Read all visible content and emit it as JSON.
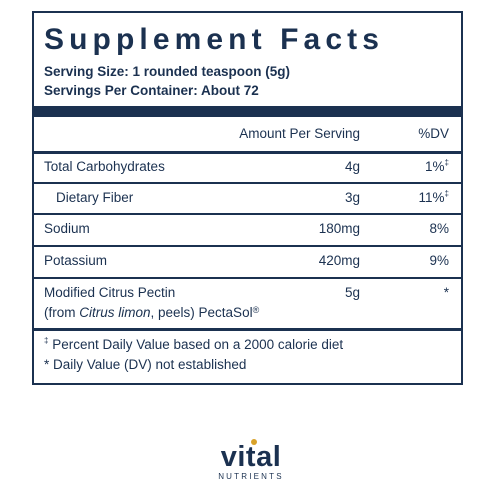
{
  "label": {
    "title": "Supplement Facts",
    "serving_size": "Serving Size: 1 rounded teaspoon (5g)",
    "servings_per_container": "Servings Per Container: About 72",
    "header_amount": "Amount Per Serving",
    "header_dv": "%DV",
    "rows": [
      {
        "name": "Total Carbohydrates",
        "amount": "4g",
        "dv": "1%",
        "dv_mark": "‡"
      },
      {
        "name": "Dietary Fiber",
        "amount": "3g",
        "dv": "11%",
        "dv_mark": "‡"
      },
      {
        "name": "Sodium",
        "amount": "180mg",
        "dv": "8%",
        "dv_mark": ""
      },
      {
        "name": "Potassium",
        "amount": "420mg",
        "dv": "9%",
        "dv_mark": ""
      },
      {
        "name": "Modified Citrus Pectin",
        "name_line2_prefix": "(from ",
        "name_line2_italic": "Citrus limon",
        "name_line2_suffix": ", peels) PectaSol",
        "name_line2_mark": "®",
        "amount": "5g",
        "dv": "*",
        "dv_mark": ""
      }
    ],
    "footnotes": [
      {
        "mark": "‡",
        "text": " Percent Daily Value based on a 2000 calorie diet"
      },
      {
        "mark": "",
        "text": "* Daily Value (DV) not established"
      }
    ]
  },
  "brand": {
    "wordmark": "vital",
    "tagline": "NUTRIENTS",
    "primary_color": "#1b3150",
    "accent_color": "#d8a22a"
  }
}
